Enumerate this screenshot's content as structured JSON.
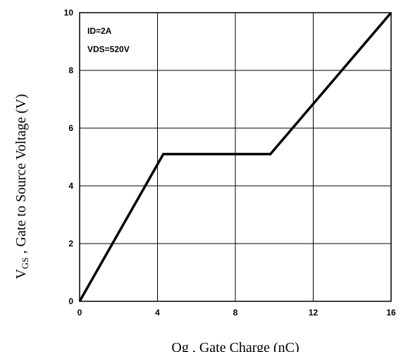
{
  "chart_data": {
    "type": "line",
    "xlabel": "Qg , Gate Charge (nC)",
    "ylabel_main": "V",
    "ylabel_sub": "GS",
    "ylabel_rest": " , Gate to Source Voltage (V)",
    "xlim": [
      0,
      16
    ],
    "ylim": [
      0,
      10
    ],
    "xticks": [
      0,
      4,
      8,
      12,
      16
    ],
    "xtick_labels": [
      "0",
      "4",
      "8",
      "12",
      "16"
    ],
    "yticks": [
      0,
      2,
      4,
      6,
      8,
      10
    ],
    "ytick_labels": [
      "0",
      "2",
      "4",
      "6",
      "8",
      "10"
    ],
    "grid": true,
    "annotations": [
      "ID=2A",
      "VDS=520V"
    ],
    "series": [
      {
        "x": [
          0,
          4.3,
          9.8,
          16
        ],
        "y": [
          0,
          5.1,
          5.1,
          10
        ]
      }
    ],
    "colors": {
      "line": "#000000",
      "grid": "#000000",
      "background": "#ffffff"
    }
  }
}
